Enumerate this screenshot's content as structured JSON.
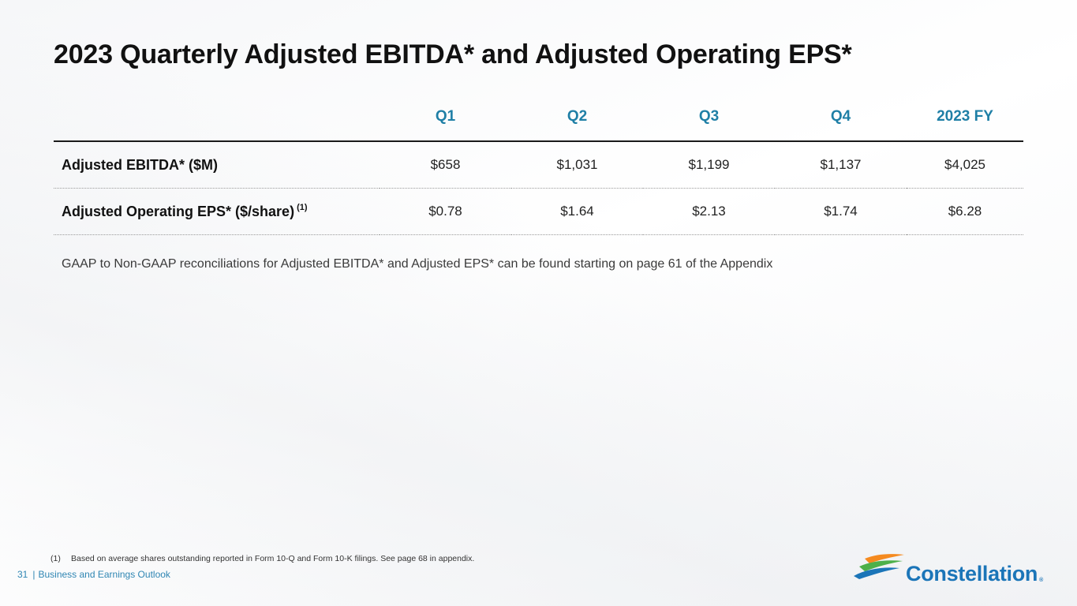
{
  "slide": {
    "title": "2023 Quarterly Adjusted EBITDA* and Adjusted Operating EPS*"
  },
  "table": {
    "columns": [
      "Q1",
      "Q2",
      "Q3",
      "Q4",
      "2023 FY"
    ],
    "rows": [
      {
        "label": "Adjusted EBITDA* ($M)",
        "footnote_marker": "",
        "values": [
          "$658",
          "$1,031",
          "$1,199",
          "$1,137",
          "$4,025"
        ]
      },
      {
        "label": "Adjusted Operating EPS* ($/share)",
        "footnote_marker": "(1)",
        "values": [
          "$0.78",
          "$1.64",
          "$2.13",
          "$1.74",
          "$6.28"
        ]
      }
    ],
    "header_color": "#1f7fa6"
  },
  "note": "GAAP to Non-GAAP reconciliations for Adjusted EBITDA* and Adjusted EPS* can be found starting on page 61 of the Appendix",
  "footnote": {
    "marker": "(1)",
    "text": "Based on average shares outstanding reported in Form 10-Q and Form 10-K filings. See page 68 in appendix."
  },
  "footer": {
    "page_number": "31",
    "separator": "|",
    "section": "Business and Earnings Outlook"
  },
  "logo": {
    "name": "Constellation",
    "reg_mark": "®",
    "brand_color": "#1b75b8",
    "swoosh_colors": [
      "#f58a1f",
      "#4db04a",
      "#1b75b8"
    ]
  }
}
